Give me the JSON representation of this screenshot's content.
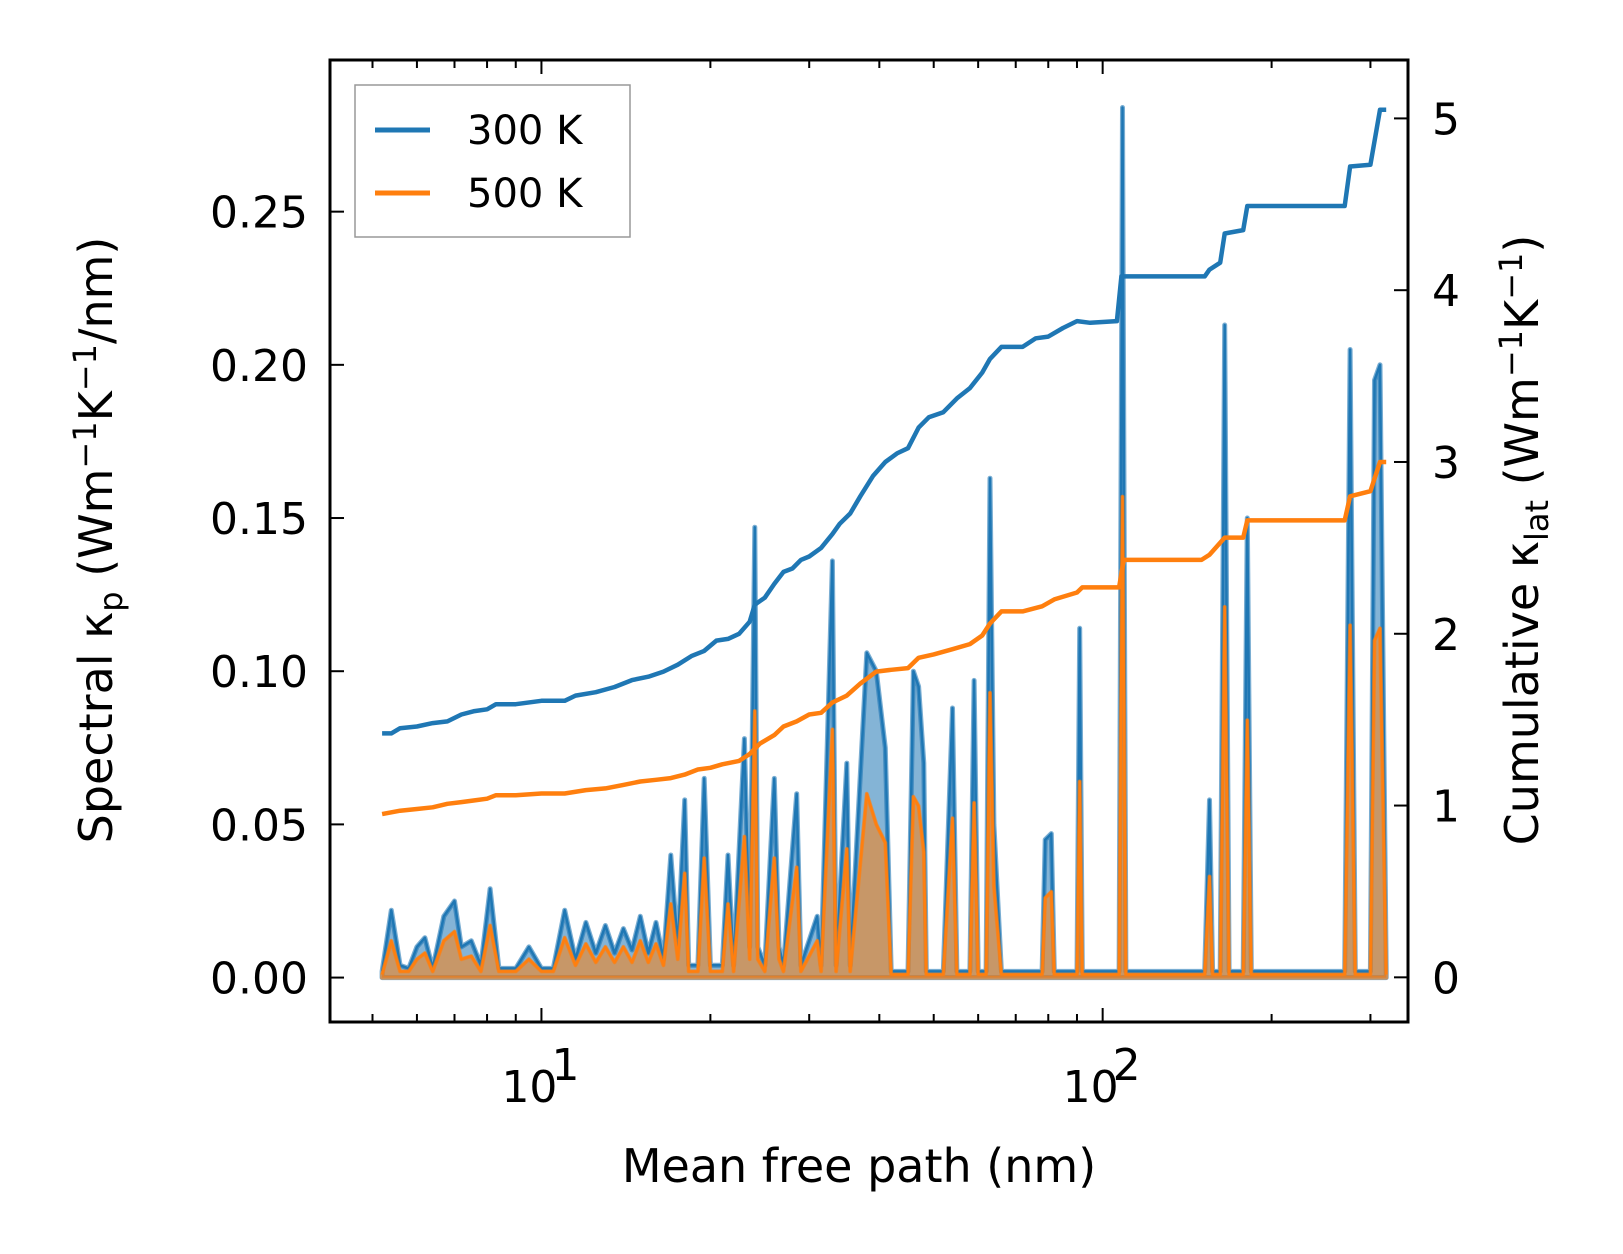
{
  "chart_data": {
    "type": "line",
    "xlabel": "Mean free path (nm)",
    "xscale": "log",
    "xlim": [
      4.2,
      350
    ],
    "x_tick_labels": [
      {
        "value": 10,
        "base": "10",
        "exp": "1"
      },
      {
        "value": 100,
        "base": "10",
        "exp": "2"
      }
    ],
    "y_left": {
      "label_parts": [
        "Spectral κ",
        "p",
        " (Wm",
        "−1",
        "K",
        "−1",
        "/nm)"
      ],
      "ylim": [
        -0.0145,
        0.2995
      ],
      "ticks": [
        0.0,
        0.05,
        0.1,
        0.15,
        0.2,
        0.25
      ],
      "tick_labels": [
        "0.00",
        "0.05",
        "0.10",
        "0.15",
        "0.20",
        "0.25"
      ]
    },
    "y_right": {
      "label_parts": [
        "Cumulative κ",
        "lat",
        " (Wm",
        "−1",
        "K",
        "−1",
        ")"
      ],
      "ylim": [
        -0.26,
        5.34
      ],
      "ticks": [
        0,
        1,
        2,
        3,
        4,
        5
      ],
      "tick_labels": [
        "0",
        "1",
        "2",
        "3",
        "4",
        "5"
      ]
    },
    "legend": {
      "position": "top-left",
      "entries": [
        {
          "label": "300 K",
          "color": "#1f77b4"
        },
        {
          "label": "500 K",
          "color": "#ff7f0e"
        }
      ]
    },
    "spectral_300K": [
      [
        5.2,
        0.002
      ],
      [
        5.4,
        0.022
      ],
      [
        5.6,
        0.004
      ],
      [
        5.8,
        0.003
      ],
      [
        6.0,
        0.01
      ],
      [
        6.2,
        0.013
      ],
      [
        6.4,
        0.003
      ],
      [
        6.7,
        0.02
      ],
      [
        7.0,
        0.025
      ],
      [
        7.2,
        0.01
      ],
      [
        7.5,
        0.012
      ],
      [
        7.8,
        0.004
      ],
      [
        8.1,
        0.029
      ],
      [
        8.4,
        0.003
      ],
      [
        8.7,
        0.003
      ],
      [
        9.0,
        0.003
      ],
      [
        9.5,
        0.01
      ],
      [
        10.0,
        0.003
      ],
      [
        10.5,
        0.003
      ],
      [
        11.0,
        0.022
      ],
      [
        11.5,
        0.006
      ],
      [
        12.0,
        0.018
      ],
      [
        12.5,
        0.008
      ],
      [
        13.0,
        0.017
      ],
      [
        13.5,
        0.008
      ],
      [
        14.0,
        0.016
      ],
      [
        14.5,
        0.009
      ],
      [
        15.0,
        0.02
      ],
      [
        15.5,
        0.008
      ],
      [
        16.0,
        0.018
      ],
      [
        16.5,
        0.006
      ],
      [
        17.0,
        0.04
      ],
      [
        17.5,
        0.01
      ],
      [
        18.0,
        0.058
      ],
      [
        18.3,
        0.004
      ],
      [
        19.0,
        0.004
      ],
      [
        19.5,
        0.065
      ],
      [
        20.0,
        0.004
      ],
      [
        21.0,
        0.004
      ],
      [
        21.5,
        0.04
      ],
      [
        22.0,
        0.004
      ],
      [
        23.0,
        0.078
      ],
      [
        23.5,
        0.01
      ],
      [
        24.0,
        0.147
      ],
      [
        24.3,
        0.01
      ],
      [
        25.0,
        0.004
      ],
      [
        26.0,
        0.065
      ],
      [
        26.5,
        0.01
      ],
      [
        27.0,
        0.004
      ],
      [
        28.5,
        0.06
      ],
      [
        29.0,
        0.004
      ],
      [
        31.0,
        0.02
      ],
      [
        31.5,
        0.004
      ],
      [
        33.0,
        0.136
      ],
      [
        33.5,
        0.004
      ],
      [
        35.0,
        0.07
      ],
      [
        35.5,
        0.004
      ],
      [
        38.0,
        0.106
      ],
      [
        39.5,
        0.1
      ],
      [
        41.0,
        0.075
      ],
      [
        42.0,
        0.002
      ],
      [
        45.0,
        0.002
      ],
      [
        46.0,
        0.1
      ],
      [
        47.0,
        0.095
      ],
      [
        48.0,
        0.07
      ],
      [
        48.5,
        0.002
      ],
      [
        52.0,
        0.002
      ],
      [
        54.0,
        0.088
      ],
      [
        55.0,
        0.002
      ],
      [
        58.0,
        0.002
      ],
      [
        59.0,
        0.097
      ],
      [
        60.0,
        0.002
      ],
      [
        62.0,
        0.002
      ],
      [
        63.0,
        0.163
      ],
      [
        64.0,
        0.05
      ],
      [
        66.0,
        0.002
      ],
      [
        78.0,
        0.002
      ],
      [
        79.0,
        0.045
      ],
      [
        81.0,
        0.047
      ],
      [
        82.0,
        0.002
      ],
      [
        90.0,
        0.002
      ],
      [
        91.0,
        0.114
      ],
      [
        92.0,
        0.002
      ],
      [
        107.0,
        0.002
      ],
      [
        108.5,
        0.284
      ],
      [
        110.0,
        0.002
      ],
      [
        152.0,
        0.002
      ],
      [
        155.0,
        0.058
      ],
      [
        157.0,
        0.002
      ],
      [
        162.0,
        0.002
      ],
      [
        165.0,
        0.213
      ],
      [
        168.0,
        0.002
      ],
      [
        178.0,
        0.002
      ],
      [
        181.0,
        0.15
      ],
      [
        184.0,
        0.002
      ],
      [
        270.0,
        0.002
      ],
      [
        276.0,
        0.205
      ],
      [
        282.0,
        0.002
      ],
      [
        300.0,
        0.002
      ],
      [
        305.0,
        0.195
      ],
      [
        312.0,
        0.2
      ],
      [
        320.0,
        0.002
      ]
    ],
    "spectral_500K": [
      [
        5.2,
        0.001
      ],
      [
        5.4,
        0.012
      ],
      [
        5.6,
        0.002
      ],
      [
        5.8,
        0.002
      ],
      [
        6.0,
        0.006
      ],
      [
        6.2,
        0.008
      ],
      [
        6.4,
        0.002
      ],
      [
        6.7,
        0.012
      ],
      [
        7.0,
        0.015
      ],
      [
        7.2,
        0.006
      ],
      [
        7.5,
        0.007
      ],
      [
        7.8,
        0.002
      ],
      [
        8.1,
        0.017
      ],
      [
        8.4,
        0.002
      ],
      [
        8.7,
        0.002
      ],
      [
        9.0,
        0.002
      ],
      [
        9.5,
        0.006
      ],
      [
        10.0,
        0.002
      ],
      [
        10.5,
        0.002
      ],
      [
        11.0,
        0.013
      ],
      [
        11.5,
        0.004
      ],
      [
        12.0,
        0.011
      ],
      [
        12.5,
        0.005
      ],
      [
        13.0,
        0.01
      ],
      [
        13.5,
        0.005
      ],
      [
        14.0,
        0.01
      ],
      [
        14.5,
        0.005
      ],
      [
        15.0,
        0.012
      ],
      [
        15.5,
        0.005
      ],
      [
        16.0,
        0.011
      ],
      [
        16.5,
        0.004
      ],
      [
        17.0,
        0.024
      ],
      [
        17.5,
        0.006
      ],
      [
        18.0,
        0.034
      ],
      [
        18.3,
        0.002
      ],
      [
        19.0,
        0.002
      ],
      [
        19.5,
        0.039
      ],
      [
        20.0,
        0.002
      ],
      [
        21.0,
        0.002
      ],
      [
        21.5,
        0.024
      ],
      [
        22.0,
        0.002
      ],
      [
        23.0,
        0.046
      ],
      [
        23.5,
        0.006
      ],
      [
        24.0,
        0.087
      ],
      [
        24.3,
        0.006
      ],
      [
        25.0,
        0.002
      ],
      [
        26.0,
        0.039
      ],
      [
        26.5,
        0.006
      ],
      [
        27.0,
        0.002
      ],
      [
        28.5,
        0.036
      ],
      [
        29.0,
        0.002
      ],
      [
        31.0,
        0.012
      ],
      [
        31.5,
        0.002
      ],
      [
        33.0,
        0.081
      ],
      [
        33.5,
        0.002
      ],
      [
        35.0,
        0.042
      ],
      [
        35.5,
        0.002
      ],
      [
        38.0,
        0.06
      ],
      [
        39.5,
        0.05
      ],
      [
        41.0,
        0.044
      ],
      [
        42.0,
        0.001
      ],
      [
        45.0,
        0.001
      ],
      [
        46.0,
        0.059
      ],
      [
        47.0,
        0.056
      ],
      [
        48.0,
        0.041
      ],
      [
        48.5,
        0.001
      ],
      [
        52.0,
        0.001
      ],
      [
        54.0,
        0.052
      ],
      [
        55.0,
        0.001
      ],
      [
        58.0,
        0.001
      ],
      [
        59.0,
        0.057
      ],
      [
        60.0,
        0.001
      ],
      [
        62.0,
        0.001
      ],
      [
        63.0,
        0.093
      ],
      [
        64.0,
        0.03
      ],
      [
        66.0,
        0.001
      ],
      [
        78.0,
        0.001
      ],
      [
        79.0,
        0.026
      ],
      [
        81.0,
        0.028
      ],
      [
        82.0,
        0.001
      ],
      [
        90.0,
        0.001
      ],
      [
        91.0,
        0.064
      ],
      [
        92.0,
        0.001
      ],
      [
        107.0,
        0.001
      ],
      [
        108.5,
        0.157
      ],
      [
        110.0,
        0.001
      ],
      [
        152.0,
        0.001
      ],
      [
        155.0,
        0.033
      ],
      [
        157.0,
        0.001
      ],
      [
        162.0,
        0.001
      ],
      [
        165.0,
        0.121
      ],
      [
        168.0,
        0.001
      ],
      [
        178.0,
        0.001
      ],
      [
        181.0,
        0.084
      ],
      [
        184.0,
        0.001
      ],
      [
        270.0,
        0.001
      ],
      [
        276.0,
        0.115
      ],
      [
        282.0,
        0.001
      ],
      [
        300.0,
        0.001
      ],
      [
        305.0,
        0.11
      ],
      [
        312.0,
        0.114
      ],
      [
        320.0,
        0.001
      ]
    ],
    "cumulative_300K": [
      [
        5.2,
        1.42
      ],
      [
        5.4,
        1.42
      ],
      [
        5.6,
        1.45
      ],
      [
        6.0,
        1.46
      ],
      [
        6.4,
        1.48
      ],
      [
        6.8,
        1.49
      ],
      [
        7.2,
        1.53
      ],
      [
        7.6,
        1.55
      ],
      [
        8.0,
        1.56
      ],
      [
        8.3,
        1.59
      ],
      [
        9.0,
        1.59
      ],
      [
        10.0,
        1.61
      ],
      [
        11.0,
        1.61
      ],
      [
        11.5,
        1.64
      ],
      [
        12.5,
        1.66
      ],
      [
        13.5,
        1.69
      ],
      [
        14.5,
        1.73
      ],
      [
        15.5,
        1.75
      ],
      [
        16.5,
        1.78
      ],
      [
        17.5,
        1.82
      ],
      [
        18.5,
        1.87
      ],
      [
        19.5,
        1.9
      ],
      [
        20.5,
        1.96
      ],
      [
        21.5,
        1.97
      ],
      [
        22.5,
        2.0
      ],
      [
        23.5,
        2.07
      ],
      [
        24.0,
        2.17
      ],
      [
        25.0,
        2.21
      ],
      [
        26.0,
        2.29
      ],
      [
        27.0,
        2.36
      ],
      [
        28.0,
        2.38
      ],
      [
        29.0,
        2.43
      ],
      [
        30.0,
        2.45
      ],
      [
        31.5,
        2.5
      ],
      [
        33.0,
        2.58
      ],
      [
        34.0,
        2.64
      ],
      [
        35.5,
        2.7
      ],
      [
        37.0,
        2.8
      ],
      [
        39.0,
        2.92
      ],
      [
        41.0,
        3.0
      ],
      [
        43.0,
        3.05
      ],
      [
        45.0,
        3.08
      ],
      [
        47.0,
        3.2
      ],
      [
        49.0,
        3.26
      ],
      [
        52.0,
        3.29
      ],
      [
        55.0,
        3.37
      ],
      [
        58.0,
        3.43
      ],
      [
        61.0,
        3.52
      ],
      [
        63.0,
        3.6
      ],
      [
        66.0,
        3.67
      ],
      [
        72.0,
        3.67
      ],
      [
        76.0,
        3.72
      ],
      [
        80.0,
        3.73
      ],
      [
        85.0,
        3.78
      ],
      [
        90.0,
        3.82
      ],
      [
        95.0,
        3.81
      ],
      [
        106.0,
        3.82
      ],
      [
        108.0,
        4.08
      ],
      [
        110.0,
        4.08
      ],
      [
        152.0,
        4.08
      ],
      [
        155.0,
        4.12
      ],
      [
        162.0,
        4.16
      ],
      [
        165.0,
        4.33
      ],
      [
        178.0,
        4.35
      ],
      [
        181.0,
        4.49
      ],
      [
        270.0,
        4.49
      ],
      [
        276.0,
        4.72
      ],
      [
        300.0,
        4.73
      ],
      [
        312.0,
        5.05
      ],
      [
        320.0,
        5.05
      ]
    ],
    "cumulative_500K": [
      [
        5.2,
        0.95
      ],
      [
        5.6,
        0.97
      ],
      [
        6.0,
        0.98
      ],
      [
        6.4,
        0.99
      ],
      [
        6.8,
        1.01
      ],
      [
        7.2,
        1.02
      ],
      [
        7.6,
        1.03
      ],
      [
        8.0,
        1.04
      ],
      [
        8.3,
        1.06
      ],
      [
        9.0,
        1.06
      ],
      [
        10.0,
        1.07
      ],
      [
        11.0,
        1.07
      ],
      [
        12.0,
        1.09
      ],
      [
        13.0,
        1.1
      ],
      [
        14.0,
        1.12
      ],
      [
        15.0,
        1.14
      ],
      [
        16.0,
        1.15
      ],
      [
        17.0,
        1.16
      ],
      [
        18.0,
        1.18
      ],
      [
        19.0,
        1.21
      ],
      [
        20.0,
        1.22
      ],
      [
        21.0,
        1.24
      ],
      [
        22.5,
        1.26
      ],
      [
        23.5,
        1.3
      ],
      [
        24.5,
        1.36
      ],
      [
        26.0,
        1.41
      ],
      [
        27.0,
        1.46
      ],
      [
        28.5,
        1.49
      ],
      [
        30.0,
        1.53
      ],
      [
        31.5,
        1.54
      ],
      [
        33.0,
        1.6
      ],
      [
        35.0,
        1.64
      ],
      [
        37.0,
        1.71
      ],
      [
        39.5,
        1.78
      ],
      [
        42.0,
        1.79
      ],
      [
        45.0,
        1.8
      ],
      [
        47.0,
        1.86
      ],
      [
        50.0,
        1.88
      ],
      [
        54.0,
        1.91
      ],
      [
        58.0,
        1.94
      ],
      [
        61.0,
        1.99
      ],
      [
        63.0,
        2.06
      ],
      [
        66.0,
        2.13
      ],
      [
        72.0,
        2.13
      ],
      [
        78.0,
        2.16
      ],
      [
        82.0,
        2.2
      ],
      [
        90.0,
        2.24
      ],
      [
        92.0,
        2.27
      ],
      [
        107.0,
        2.27
      ],
      [
        109.0,
        2.43
      ],
      [
        150.0,
        2.43
      ],
      [
        155.0,
        2.46
      ],
      [
        165.0,
        2.56
      ],
      [
        178.0,
        2.56
      ],
      [
        181.0,
        2.66
      ],
      [
        270.0,
        2.66
      ],
      [
        276.0,
        2.8
      ],
      [
        300.0,
        2.83
      ],
      [
        312.0,
        3.0
      ],
      [
        320.0,
        3.0
      ]
    ]
  }
}
